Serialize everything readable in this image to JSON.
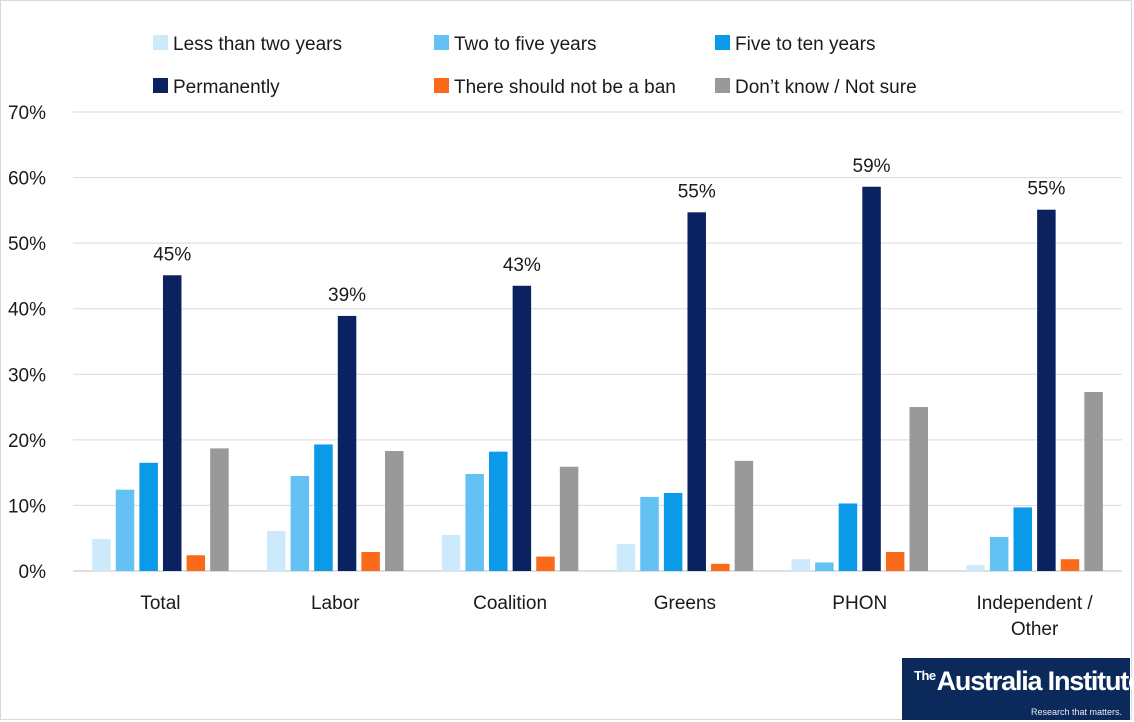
{
  "colors": {
    "series": [
      "#cdeafc",
      "#64c1f4",
      "#0a9ae8",
      "#0b2260",
      "#f96a1b",
      "#999999"
    ],
    "grid": "#d9d9d9",
    "axis": "#bfbfbf",
    "logo_bg": "#0b2a5b"
  },
  "chart_data": {
    "type": "bar",
    "title": "",
    "xlabel": "",
    "ylabel": "",
    "ylim": [
      0,
      70
    ],
    "y_unit": "%",
    "yticks": [
      "0%",
      "10%",
      "20%",
      "30%",
      "40%",
      "50%",
      "60%",
      "70%"
    ],
    "grid": true,
    "legend_position": "top",
    "categories": [
      "Total",
      "Labor",
      "Coalition",
      "Greens",
      "PHON",
      "Independent / Other"
    ],
    "series": [
      {
        "name": "Less than two years",
        "values": [
          4.9,
          6.1,
          5.5,
          4.1,
          1.8,
          0.9
        ]
      },
      {
        "name": "Two to five years",
        "values": [
          12.4,
          14.5,
          14.8,
          11.3,
          1.3,
          5.2
        ]
      },
      {
        "name": "Five to ten years",
        "values": [
          16.5,
          19.3,
          18.2,
          11.9,
          10.3,
          9.7
        ]
      },
      {
        "name": "Permanently",
        "values": [
          45.1,
          38.9,
          43.5,
          54.7,
          58.6,
          55.1
        ]
      },
      {
        "name": "There should not be a ban",
        "values": [
          2.4,
          2.9,
          2.2,
          1.1,
          2.9,
          1.8
        ]
      },
      {
        "name": "Don’t know / Not sure",
        "values": [
          18.7,
          18.3,
          15.9,
          16.8,
          25.0,
          27.3
        ]
      }
    ],
    "data_labels": {
      "series": "Permanently",
      "labels": [
        "45%",
        "39%",
        "43%",
        "55%",
        "59%",
        "55%"
      ]
    }
  },
  "logo": {
    "brand_prefix": "The",
    "brand_name": "Australia Institute",
    "tagline": "Research that matters."
  }
}
